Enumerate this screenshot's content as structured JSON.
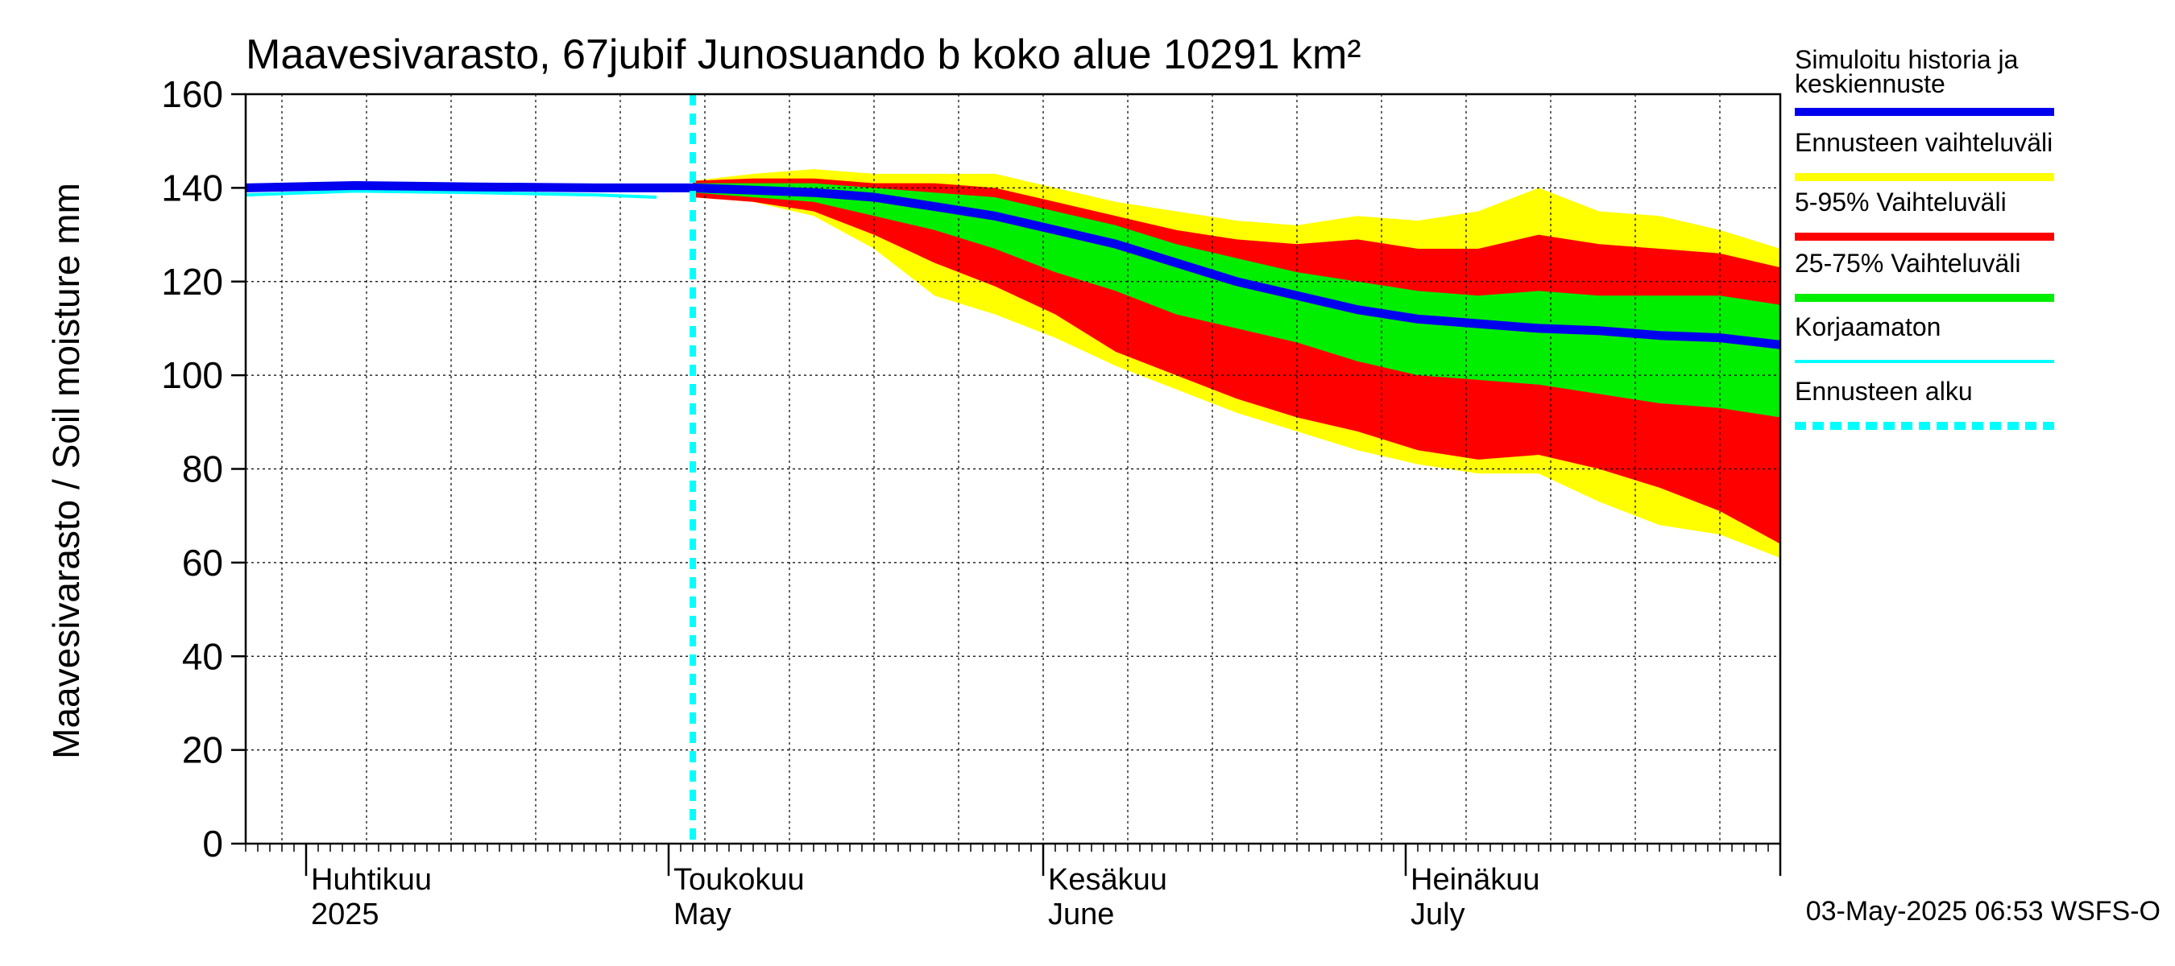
{
  "chart_data": {
    "type": "area",
    "title": "Maavesivarasto, 67jubif Junosuando b koko alue 10291 km²",
    "ylabel": "Maavesivarasto / Soil moisture   mm",
    "ylim": [
      0,
      160
    ],
    "yticks": [
      0,
      20,
      40,
      60,
      80,
      100,
      120,
      140,
      160
    ],
    "x_range": [
      "2025-03-27",
      "2025-08-01"
    ],
    "month_labels": [
      {
        "line1": "Huhtikuu",
        "line2": "2025",
        "date": "2025-04-01"
      },
      {
        "line1": "Toukokuu",
        "line2": "May",
        "date": "2025-05-01"
      },
      {
        "line1": "Kesäkuu",
        "line2": "June",
        "date": "2025-06-01"
      },
      {
        "line1": "Heinäkuu",
        "line2": "July",
        "date": "2025-07-01"
      }
    ],
    "forecast_start": "2025-05-03",
    "grid": true,
    "legend_position": "right",
    "legend": [
      {
        "label": "Simuloitu historia ja keskiennuste",
        "color": "#0000ee",
        "style": "solid"
      },
      {
        "label": "Ennusteen vaihteluväli",
        "color": "#ffff00",
        "style": "solid"
      },
      {
        "label": "5-95% Vaihteluväli",
        "color": "#ff0000",
        "style": "solid"
      },
      {
        "label": "25-75% Vaihteluväli",
        "color": "#00ee00",
        "style": "solid"
      },
      {
        "label": "Korjaamaton",
        "color": "#00ffff",
        "style": "solid"
      },
      {
        "label": "Ennusteen alku",
        "color": "#00ffff",
        "style": "dashed"
      }
    ],
    "series": [
      {
        "name": "Simuloitu historia ja keskiennuste",
        "x": [
          "2025-03-27",
          "2025-04-05",
          "2025-04-15",
          "2025-04-25",
          "2025-05-03",
          "2025-05-08",
          "2025-05-13",
          "2025-05-18",
          "2025-05-23",
          "2025-05-28",
          "2025-06-02",
          "2025-06-07",
          "2025-06-12",
          "2025-06-17",
          "2025-06-22",
          "2025-06-27",
          "2025-07-02",
          "2025-07-07",
          "2025-07-12",
          "2025-07-17",
          "2025-07-22",
          "2025-07-27",
          "2025-08-01"
        ],
        "y": [
          140,
          140.5,
          140.2,
          140,
          140,
          139.5,
          139,
          138,
          136,
          134,
          131,
          128,
          124,
          120,
          117,
          114,
          112,
          111,
          110,
          109.5,
          108.5,
          108,
          106.5
        ]
      },
      {
        "name": "Korjaamaton",
        "x": [
          "2025-03-27",
          "2025-04-05",
          "2025-04-15",
          "2025-04-25",
          "2025-04-30"
        ],
        "y": [
          138.5,
          139.3,
          139,
          138.5,
          138
        ]
      }
    ],
    "bands": [
      {
        "name": "Ennusteen vaihteluväli",
        "x": [
          "2025-05-03",
          "2025-05-08",
          "2025-05-13",
          "2025-05-18",
          "2025-05-23",
          "2025-05-28",
          "2025-06-02",
          "2025-06-07",
          "2025-06-12",
          "2025-06-17",
          "2025-06-22",
          "2025-06-27",
          "2025-07-02",
          "2025-07-07",
          "2025-07-12",
          "2025-07-17",
          "2025-07-22",
          "2025-07-27",
          "2025-08-01"
        ],
        "upper": [
          141.5,
          143,
          144,
          143,
          143,
          143,
          140,
          137,
          135,
          133,
          132,
          134,
          133,
          135,
          140,
          135,
          134,
          131,
          127
        ],
        "lower": [
          138,
          137,
          134,
          127,
          117,
          113,
          108,
          102,
          97,
          92,
          88,
          84,
          81,
          79,
          79,
          73,
          68,
          66,
          61
        ]
      },
      {
        "name": "5-95% Vaihteluväli",
        "x": [
          "2025-05-03",
          "2025-05-08",
          "2025-05-13",
          "2025-05-18",
          "2025-05-23",
          "2025-05-28",
          "2025-06-02",
          "2025-06-07",
          "2025-06-12",
          "2025-06-17",
          "2025-06-22",
          "2025-06-27",
          "2025-07-02",
          "2025-07-07",
          "2025-07-12",
          "2025-07-17",
          "2025-07-22",
          "2025-07-27",
          "2025-08-01"
        ],
        "upper": [
          141.5,
          142,
          142,
          141,
          141,
          140,
          137,
          134,
          131,
          129,
          128,
          129,
          127,
          127,
          130,
          128,
          127,
          126,
          123
        ],
        "lower": [
          138,
          137,
          135,
          130,
          124,
          119,
          113,
          105,
          100,
          95,
          91,
          88,
          84,
          82,
          83,
          80,
          76,
          71,
          64
        ]
      },
      {
        "name": "25-75% Vaihteluväli",
        "x": [
          "2025-05-03",
          "2025-05-08",
          "2025-05-13",
          "2025-05-18",
          "2025-05-23",
          "2025-05-28",
          "2025-06-02",
          "2025-06-07",
          "2025-06-12",
          "2025-06-17",
          "2025-06-22",
          "2025-06-27",
          "2025-07-02",
          "2025-07-07",
          "2025-07-12",
          "2025-07-17",
          "2025-07-22",
          "2025-07-27",
          "2025-08-01"
        ],
        "upper": [
          141,
          141,
          141,
          140,
          139,
          138,
          135,
          132,
          128,
          125,
          122,
          120,
          118,
          117,
          118,
          117,
          117,
          117,
          115
        ],
        "lower": [
          139,
          138,
          137,
          134,
          131,
          127,
          122,
          118,
          113,
          110,
          107,
          103,
          100,
          99,
          98,
          96,
          94,
          93,
          91
        ]
      }
    ]
  },
  "footer": "03-May-2025 06:53 WSFS-O"
}
